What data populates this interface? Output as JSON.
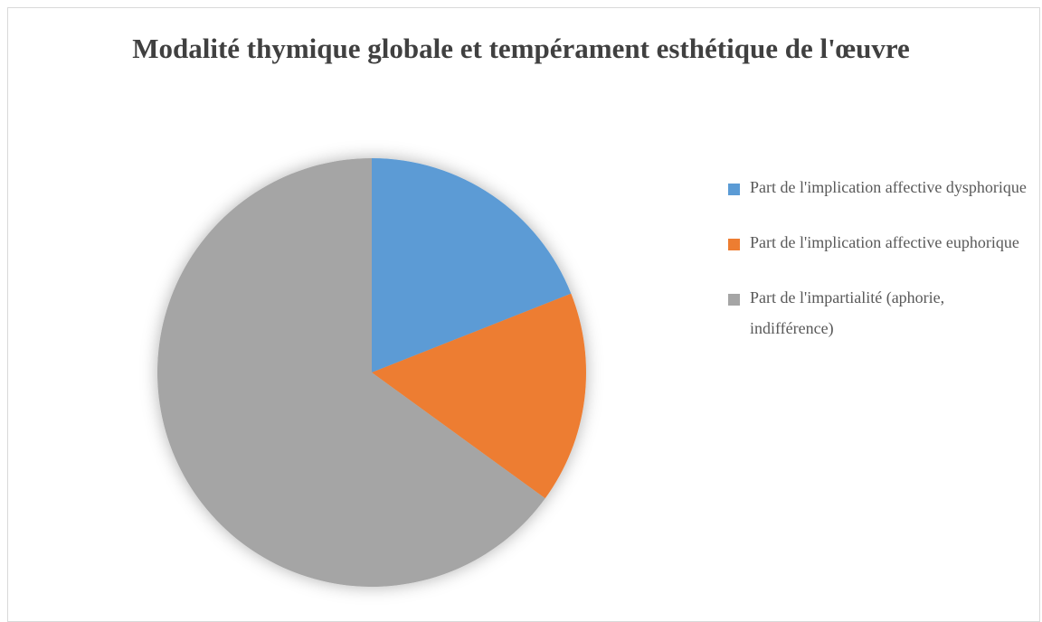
{
  "chart_data": {
    "type": "pie",
    "title": "Modalité thymique globale et tempérament esthétique de l'œuvre",
    "categories": [
      "Part de l'implication affective dysphorique",
      "Part de l'implication affective euphorique",
      "Part de l'impartialité (aphorie, indifférence)"
    ],
    "values": [
      19,
      16,
      65
    ],
    "colors": [
      "#5b9bd5",
      "#ed7d31",
      "#a5a5a5"
    ],
    "legend": "right"
  }
}
